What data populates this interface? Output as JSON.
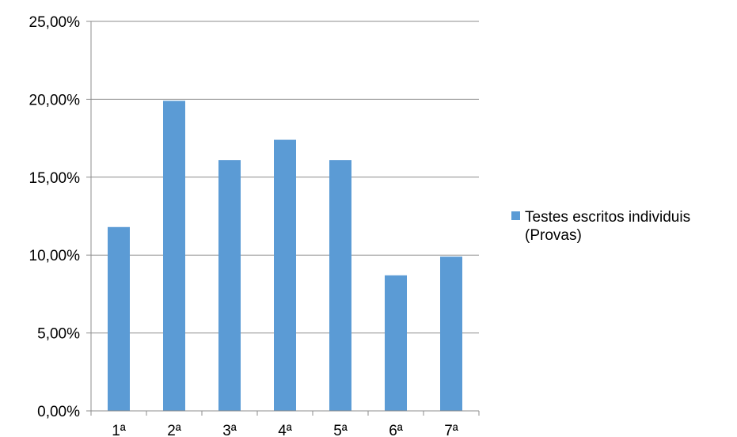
{
  "chart_data": {
    "type": "bar",
    "categories": [
      "1ª",
      "2ª",
      "3ª",
      "4ª",
      "5ª",
      "6ª",
      "7ª"
    ],
    "series": [
      {
        "name": "Testes escritos individuis (Provas)",
        "values": [
          11.8,
          19.9,
          16.1,
          17.4,
          16.1,
          8.7,
          9.9
        ]
      }
    ],
    "y_ticks": [
      "0,00%",
      "5,00%",
      "10,00%",
      "15,00%",
      "20,00%",
      "25,00%"
    ],
    "ylim": [
      0,
      25
    ],
    "y_unit": "%",
    "grid": true,
    "legend_position": "right",
    "legend_lines": [
      "Testes escritos individuis",
      "(Provas)"
    ],
    "colors": {
      "bar": "#5B9BD5",
      "grid": "#8C8C8C",
      "axis": "#8C8C8C"
    }
  }
}
